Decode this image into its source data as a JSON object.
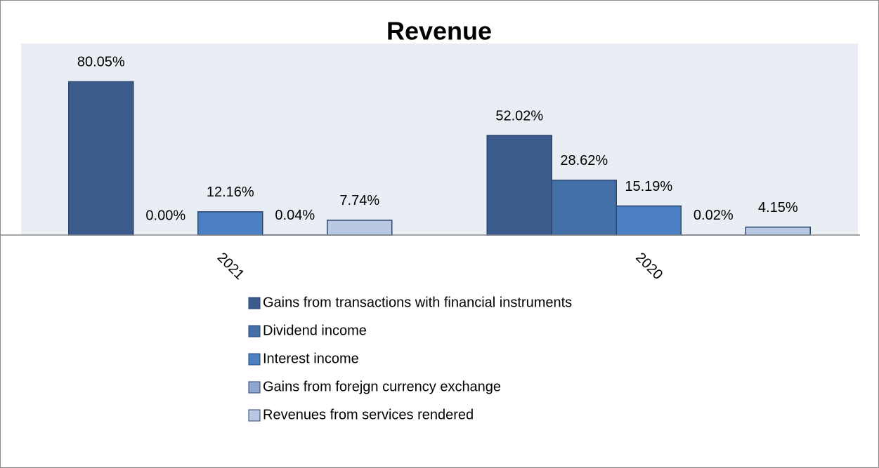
{
  "chart_data": {
    "type": "bar",
    "title": "Revenue",
    "categories": [
      "2021",
      "2020"
    ],
    "series": [
      {
        "name": "Gains from transactions with financial instruments",
        "color": "#3b5b8c",
        "values": [
          80.05,
          52.02
        ],
        "value_labels": [
          "80.05%",
          "52.02%"
        ]
      },
      {
        "name": "Dividend income",
        "color": "#4470a8",
        "values": [
          0.0,
          28.62
        ],
        "value_labels": [
          "0.00%",
          "28.62%"
        ]
      },
      {
        "name": "Interest income",
        "color": "#4b80c3",
        "values": [
          12.16,
          15.19
        ],
        "value_labels": [
          "12.16%",
          "15.19%"
        ]
      },
      {
        "name": "Gains from forejgn currency exchange",
        "color": "#8fa7cf",
        "values": [
          0.04,
          0.02
        ],
        "value_labels": [
          "0.04%",
          "0.02%"
        ]
      },
      {
        "name": "Revenues from services rendered",
        "color": "#b8c7e2",
        "values": [
          7.74,
          4.15
        ],
        "value_labels": [
          "7.74%",
          "4.15%"
        ]
      }
    ],
    "ylim": [
      0,
      100
    ]
  }
}
